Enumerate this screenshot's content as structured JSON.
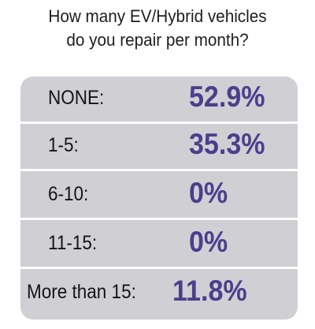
{
  "title_line1": "How many EV/Hybrid vehicles",
  "title_line2": "do you repair per month?",
  "colors": {
    "value_text": "#4b3f8c",
    "panel_bg": "#d0cfd4",
    "divider": "#ffffff"
  },
  "chart_data": {
    "type": "table",
    "title": "How many EV/Hybrid vehicles do you repair per month?",
    "categories": [
      "NONE:",
      "1-5:",
      "6-10:",
      "11-15:",
      "More than 15:"
    ],
    "value_labels": [
      "52.9%",
      "35.3%",
      "0%",
      "0%",
      "11.8%"
    ],
    "values": [
      52.9,
      35.3,
      0,
      0,
      11.8
    ],
    "unit": "%"
  }
}
